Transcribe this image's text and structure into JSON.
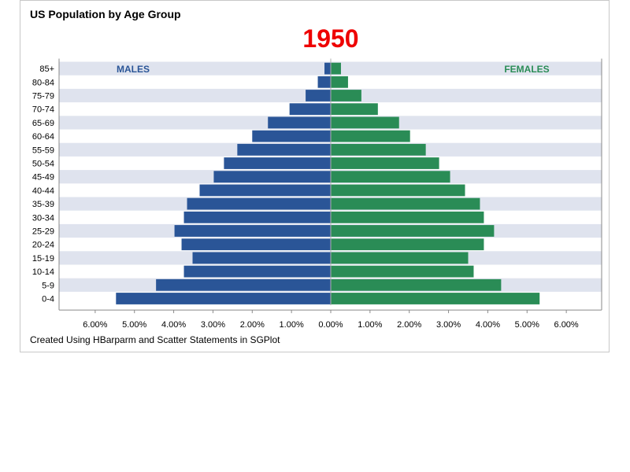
{
  "chart_data": {
    "type": "bar",
    "orientation": "horizontal",
    "title": "US Population by Age Group",
    "year": "1950",
    "footnote": "Created Using HBarparm and Scatter Statements in SGPlot",
    "categories": [
      "85+",
      "80-84",
      "75-79",
      "70-74",
      "65-69",
      "60-64",
      "55-59",
      "50-54",
      "45-49",
      "40-44",
      "35-39",
      "30-34",
      "25-29",
      "20-24",
      "15-19",
      "10-14",
      "5-9",
      "0-4"
    ],
    "series": [
      {
        "name": "MALES",
        "color": "#2a5597",
        "values": [
          0.16,
          0.33,
          0.64,
          1.05,
          1.6,
          2.0,
          2.38,
          2.72,
          2.98,
          3.34,
          3.66,
          3.74,
          3.98,
          3.8,
          3.52,
          3.74,
          4.45,
          5.47
        ]
      },
      {
        "name": "FEMALES",
        "color": "#2a8c56",
        "values": [
          0.26,
          0.44,
          0.78,
          1.2,
          1.74,
          2.02,
          2.42,
          2.76,
          3.04,
          3.42,
          3.8,
          3.9,
          4.16,
          3.9,
          3.5,
          3.64,
          4.34,
          5.32
        ]
      }
    ],
    "xticks": [
      "6.00%",
      "5.00%",
      "4.00%",
      "3.00%",
      "2.00%",
      "1.00%",
      "0.00%",
      "1.00%",
      "2.00%",
      "3.00%",
      "4.00%",
      "5.00%",
      "6.00%"
    ],
    "xlim": [
      -6.9,
      6.9
    ],
    "band_color": "#dfe3ee",
    "title_year_color": "#ee0000"
  }
}
